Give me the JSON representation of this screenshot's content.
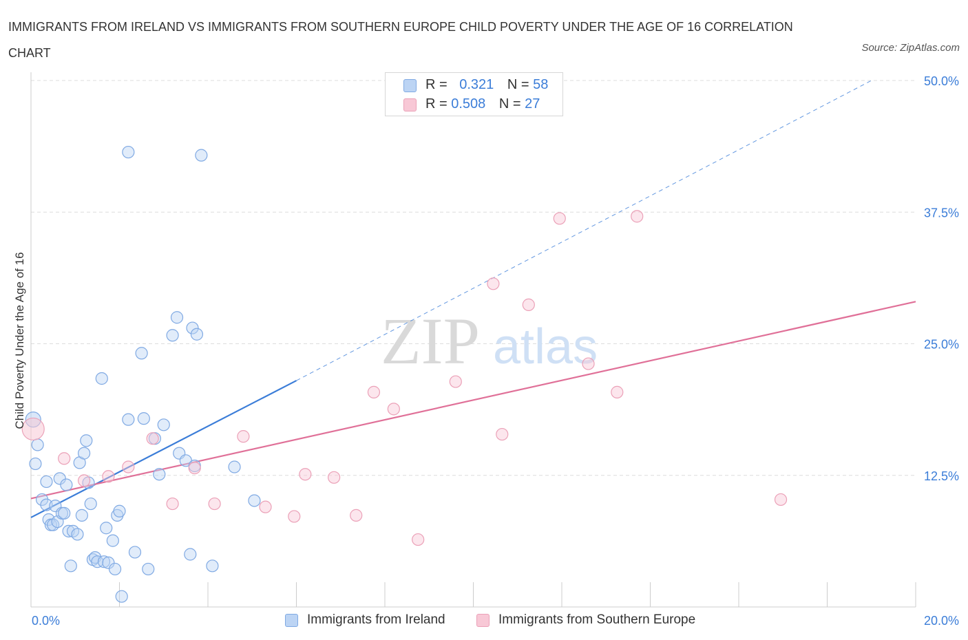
{
  "chart_data": {
    "type": "scatter",
    "title": "IMMIGRANTS FROM IRELAND VS IMMIGRANTS FROM SOUTHERN EUROPE CHILD POVERTY UNDER THE AGE OF 16 CORRELATION CHART",
    "source": "Source: ZipAtlas.com",
    "ylabel": "Child Poverty Under the Age of 16",
    "xlim": [
      0,
      20
    ],
    "ylim": [
      0,
      50
    ],
    "x_tick_labels": [
      "0.0%",
      "20.0%"
    ],
    "y_tick_labels": [
      "12.5%",
      "25.0%",
      "37.5%",
      "50.0%"
    ],
    "y_ticks": [
      12.5,
      25,
      37.5,
      50
    ],
    "watermark": {
      "zip": "ZIP",
      "atlas": "atlas"
    },
    "series": [
      {
        "name": "Immigrants from Ireland",
        "color": "#3b7dd8",
        "fill": "#bcd4f4",
        "stroke": "#7fa9e3",
        "R": "0.321",
        "N": "58",
        "trend": {
          "x1": 0,
          "y1": 8.5,
          "x2": 6.0,
          "y2": 21.5
        },
        "trend_extension": {
          "x1": 6.0,
          "y1": 21.5,
          "x2": 19.0,
          "y2": 50.0
        },
        "points": [
          [
            0.05,
            17.8
          ],
          [
            0.1,
            13.6
          ],
          [
            0.15,
            15.4
          ],
          [
            0.25,
            10.2
          ],
          [
            0.35,
            9.7
          ],
          [
            0.35,
            11.9
          ],
          [
            0.4,
            8.3
          ],
          [
            0.45,
            7.8
          ],
          [
            0.5,
            7.8
          ],
          [
            0.55,
            9.6
          ],
          [
            0.6,
            8.1
          ],
          [
            0.65,
            12.2
          ],
          [
            0.7,
            8.9
          ],
          [
            0.75,
            8.9
          ],
          [
            0.8,
            11.6
          ],
          [
            0.85,
            7.2
          ],
          [
            0.9,
            3.9
          ],
          [
            0.95,
            7.2
          ],
          [
            1.05,
            6.9
          ],
          [
            1.1,
            13.7
          ],
          [
            1.15,
            8.7
          ],
          [
            1.2,
            14.6
          ],
          [
            1.25,
            15.8
          ],
          [
            1.3,
            11.8
          ],
          [
            1.35,
            9.8
          ],
          [
            1.4,
            4.5
          ],
          [
            1.45,
            4.7
          ],
          [
            1.5,
            4.3
          ],
          [
            1.6,
            21.7
          ],
          [
            1.65,
            4.3
          ],
          [
            1.7,
            7.5
          ],
          [
            1.75,
            4.2
          ],
          [
            1.85,
            6.3
          ],
          [
            1.9,
            3.6
          ],
          [
            1.95,
            8.7
          ],
          [
            2.0,
            9.1
          ],
          [
            2.05,
            1.0
          ],
          [
            2.2,
            17.8
          ],
          [
            2.2,
            43.2
          ],
          [
            2.35,
            5.2
          ],
          [
            2.5,
            24.1
          ],
          [
            2.55,
            17.9
          ],
          [
            2.65,
            3.6
          ],
          [
            2.8,
            16.0
          ],
          [
            2.9,
            12.6
          ],
          [
            3.0,
            17.3
          ],
          [
            3.2,
            25.8
          ],
          [
            3.3,
            27.5
          ],
          [
            3.35,
            14.6
          ],
          [
            3.5,
            13.9
          ],
          [
            3.6,
            5.0
          ],
          [
            3.65,
            26.5
          ],
          [
            3.7,
            13.4
          ],
          [
            3.75,
            25.9
          ],
          [
            3.85,
            42.9
          ],
          [
            4.1,
            3.9
          ],
          [
            4.6,
            13.3
          ],
          [
            5.05,
            10.1
          ]
        ]
      },
      {
        "name": "Immigrants from Southern Europe",
        "color": "#e07098",
        "fill": "#f8c8d6",
        "stroke": "#eba0b7",
        "R": "0.508",
        "N": "27",
        "trend": {
          "x1": 0,
          "y1": 10.3,
          "x2": 20.0,
          "y2": 29.0
        },
        "points": [
          [
            0.05,
            16.9
          ],
          [
            0.75,
            14.1
          ],
          [
            1.2,
            12.0
          ],
          [
            1.75,
            12.4
          ],
          [
            2.2,
            13.3
          ],
          [
            2.75,
            16.0
          ],
          [
            3.2,
            9.8
          ],
          [
            3.7,
            13.2
          ],
          [
            4.15,
            9.8
          ],
          [
            4.8,
            16.2
          ],
          [
            5.3,
            9.5
          ],
          [
            5.95,
            8.6
          ],
          [
            6.2,
            12.6
          ],
          [
            6.85,
            12.3
          ],
          [
            7.35,
            8.7
          ],
          [
            7.75,
            20.4
          ],
          [
            8.2,
            18.8
          ],
          [
            8.75,
            6.4
          ],
          [
            9.6,
            21.4
          ],
          [
            10.45,
            30.7
          ],
          [
            10.65,
            16.4
          ],
          [
            11.25,
            28.7
          ],
          [
            11.95,
            36.9
          ],
          [
            12.6,
            23.1
          ],
          [
            13.25,
            20.4
          ],
          [
            13.7,
            37.1
          ],
          [
            16.95,
            10.2
          ]
        ]
      }
    ]
  },
  "legend_top": {
    "rows": [
      {
        "r_label": "R = ",
        "r_value": "0.321",
        "n_label": "N = ",
        "n_value": "58"
      },
      {
        "r_label": "R = ",
        "r_value": "0.508",
        "n_label": "N = ",
        "n_value": "27"
      }
    ]
  },
  "legend_bottom": {
    "items": [
      "Immigrants from Ireland",
      "Immigrants from Southern Europe"
    ]
  }
}
